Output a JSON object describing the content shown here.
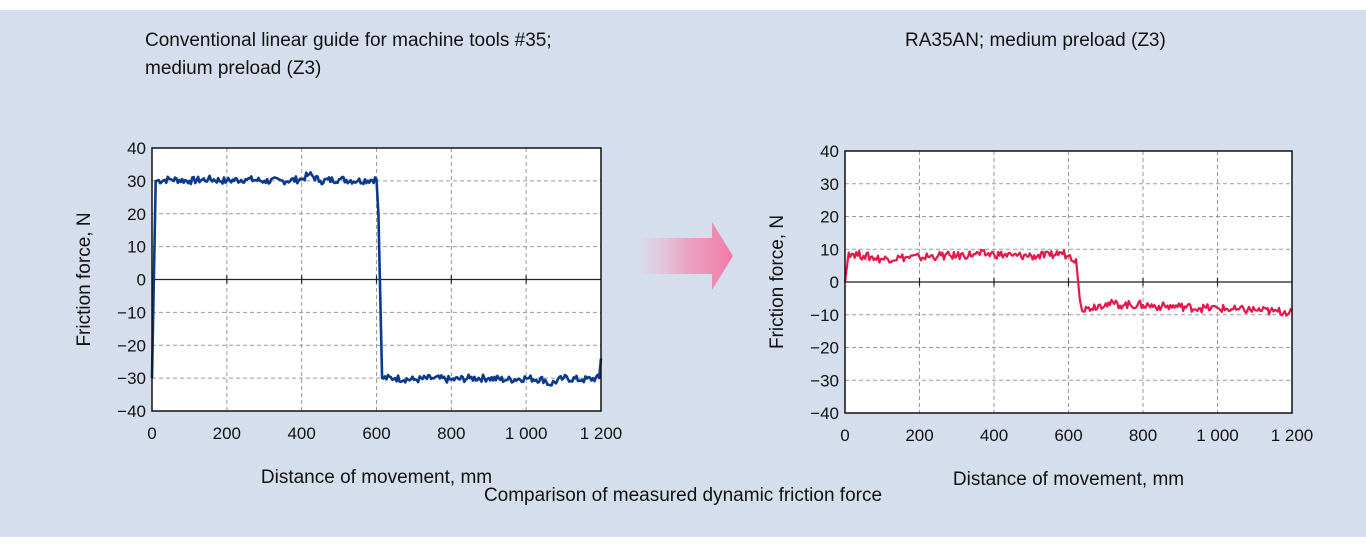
{
  "caption": "Comparison of measured dynamic friction force",
  "colors": {
    "background": "#d5deec",
    "left_series": "#0b3a8c",
    "right_series": "#e8174a"
  },
  "chart_data": [
    {
      "type": "line",
      "title": "Conventional linear guide for machine tools #35;\nmedium preload (Z3)",
      "xlabel": "Distance of movement, mm",
      "ylabel": "Friction force, N",
      "xlim": [
        0,
        1200
      ],
      "ylim": [
        -40,
        40
      ],
      "xticks": [
        0,
        200,
        400,
        600,
        800,
        1000,
        1200
      ],
      "xtick_labels": [
        "0",
        "200",
        "400",
        "600",
        "800",
        "1 000",
        "1 200"
      ],
      "yticks": [
        -40,
        -30,
        -20,
        -10,
        0,
        10,
        20,
        30,
        40
      ],
      "ytick_labels": [
        "−40",
        "−30",
        "−20",
        "−10",
        "0",
        "10",
        "20",
        "30",
        "40"
      ],
      "grid": true,
      "series": [
        {
          "x": [
            0,
            10,
            50,
            100,
            150,
            200,
            250,
            300,
            350,
            400,
            420,
            450,
            500,
            550,
            600,
            605,
            615,
            650,
            700,
            750,
            800,
            850,
            900,
            950,
            1000,
            1050,
            1060,
            1100,
            1150,
            1195,
            1200
          ],
          "y": [
            -30,
            30,
            30.5,
            30,
            30.5,
            30,
            30.5,
            30,
            30,
            30.5,
            32,
            30,
            30.5,
            30,
            30.5,
            20,
            -30,
            -30,
            -30.5,
            -30,
            -30.5,
            -30,
            -30,
            -30.5,
            -30,
            -30.5,
            -32,
            -30,
            -30.5,
            -30,
            -24
          ]
        }
      ]
    },
    {
      "type": "line",
      "title": "RA35AN; medium preload (Z3)",
      "xlabel": "Distance of movement, mm",
      "ylabel": "Friction force, N",
      "xlim": [
        0,
        1200
      ],
      "ylim": [
        -40,
        40
      ],
      "xticks": [
        0,
        200,
        400,
        600,
        800,
        1000,
        1200
      ],
      "xtick_labels": [
        "0",
        "200",
        "400",
        "600",
        "800",
        "1 000",
        "1 200"
      ],
      "yticks": [
        -40,
        -30,
        -20,
        -10,
        0,
        10,
        20,
        30,
        40
      ],
      "ytick_labels": [
        "−40",
        "−30",
        "−20",
        "−10",
        "0",
        "10",
        "20",
        "30",
        "40"
      ],
      "grid": true,
      "series": [
        {
          "x": [
            0,
            10,
            50,
            100,
            150,
            200,
            250,
            300,
            350,
            400,
            450,
            500,
            550,
            580,
            600,
            620,
            630,
            640,
            650,
            700,
            750,
            800,
            850,
            900,
            950,
            1000,
            1050,
            1100,
            1150,
            1200
          ],
          "y": [
            0,
            9,
            8,
            7,
            7.5,
            7.5,
            8,
            8,
            8.5,
            8.5,
            8,
            8,
            8,
            9,
            8,
            7,
            -5,
            -9,
            -8,
            -6.5,
            -7,
            -7,
            -7.5,
            -7.5,
            -8,
            -8,
            -8.5,
            -8.5,
            -9,
            -9
          ]
        }
      ]
    }
  ]
}
